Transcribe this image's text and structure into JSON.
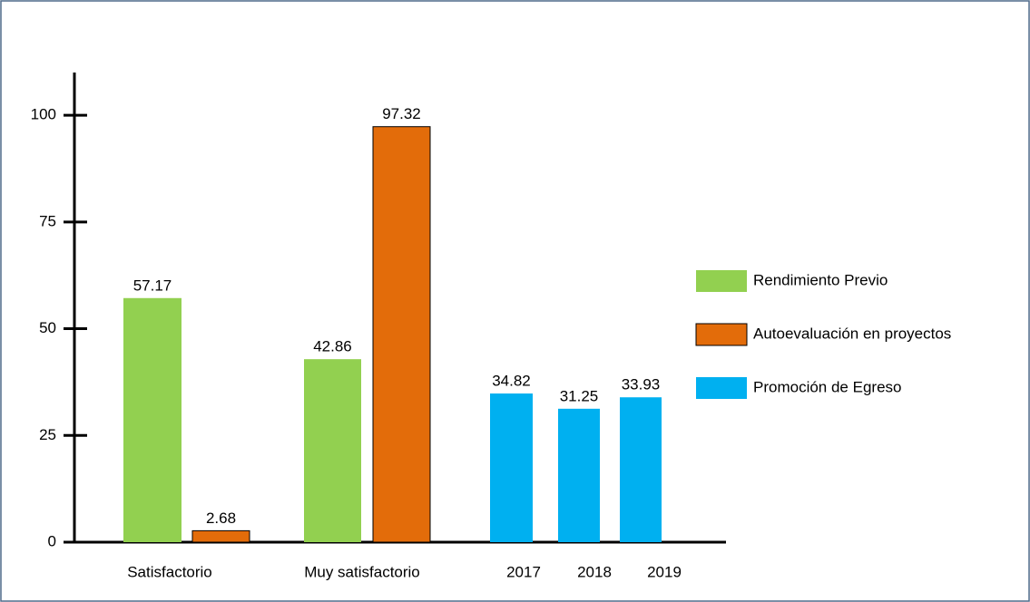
{
  "chart_data": {
    "type": "bar",
    "categories": [
      "Satisfactorio",
      "Muy satisfactorio",
      "2017",
      "2018",
      "2019"
    ],
    "series": [
      {
        "name": "Rendimiento Previo",
        "color": "#92d050",
        "values": [
          57.17,
          42.86,
          null,
          null,
          null
        ]
      },
      {
        "name": "Autoevaluación en proyectos",
        "color": "#e36c0a",
        "values": [
          2.68,
          97.32,
          null,
          null,
          null
        ]
      },
      {
        "name": "Promoción de Egreso",
        "color": "#00b0f0",
        "values": [
          null,
          null,
          34.82,
          31.25,
          33.93
        ]
      }
    ],
    "ylim": [
      0,
      110
    ],
    "yticks": [
      0,
      25,
      50,
      75,
      100
    ],
    "legend": "right"
  }
}
